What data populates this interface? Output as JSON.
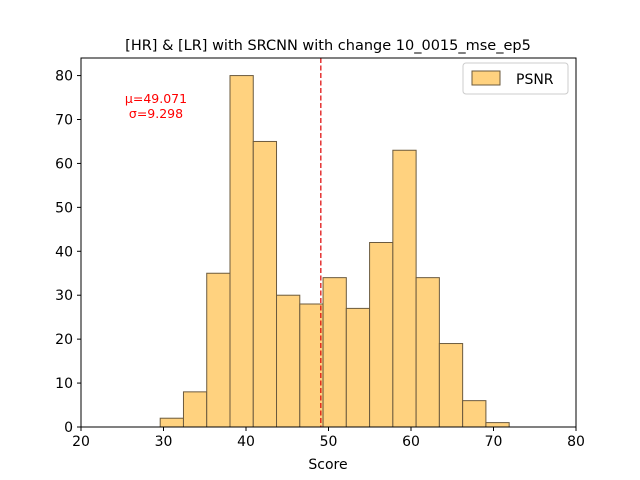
{
  "chart_data": {
    "type": "bar",
    "title": "[HR] & [LR] with SRCNN with change 10_0015_mse_ep5",
    "xlabel": "Score",
    "ylabel": "",
    "xlim": [
      20,
      80
    ],
    "ylim": [
      0,
      84
    ],
    "xticks": [
      20,
      30,
      40,
      50,
      60,
      70,
      80
    ],
    "yticks": [
      0,
      10,
      20,
      30,
      40,
      50,
      60,
      70,
      80
    ],
    "bin_width": 2.82,
    "series": [
      {
        "name": "PSNR",
        "bin_starts": [
          29.6,
          32.42,
          35.24,
          38.06,
          40.88,
          43.7,
          46.52,
          49.34,
          52.16,
          54.98,
          57.8,
          60.62,
          63.44,
          66.26,
          69.08
        ],
        "values": [
          2,
          8,
          35,
          80,
          65,
          30,
          28,
          34,
          27,
          42,
          63,
          34,
          19,
          6,
          1
        ]
      }
    ],
    "mean_line": {
      "x": 49.071,
      "color": "#dd0000"
    },
    "annotation": {
      "mu_text": "μ=49.071",
      "sigma_text": "σ=9.298",
      "color": "#ff0000"
    },
    "legend": {
      "position": "top-right",
      "label": "PSNR"
    },
    "colors": {
      "bar_fill": "#ffd27f",
      "bar_edge": "#6b5a3e"
    },
    "grid": false
  }
}
